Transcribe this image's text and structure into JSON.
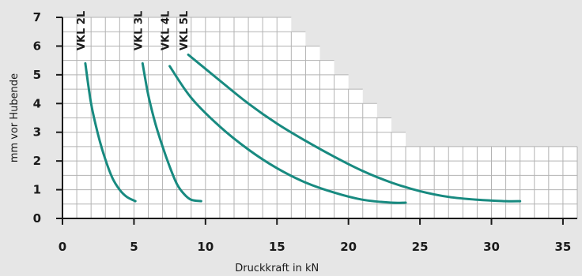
{
  "chart_data": {
    "type": "line",
    "xlabel": "Druckkraft in kN",
    "ylabel": "mm vor Hubende",
    "xlim": [
      0,
      36
    ],
    "ylim": [
      0,
      7
    ],
    "xticks": [
      0,
      5,
      10,
      15,
      20,
      25,
      30,
      35
    ],
    "yticks": [
      0,
      1,
      2,
      3,
      4,
      5,
      6,
      7
    ],
    "grid": true,
    "grid_envelope": {
      "x": [
        0,
        16,
        16,
        17,
        17,
        18,
        18,
        19,
        19,
        20,
        20,
        21,
        21,
        22,
        22,
        23,
        23,
        24,
        24,
        25,
        25,
        36
      ],
      "y": [
        7,
        7,
        6.5,
        6.5,
        6,
        6,
        5.5,
        5.5,
        5,
        5,
        4.5,
        4.5,
        4,
        4,
        3.5,
        3.5,
        3,
        3,
        2.5,
        2.5,
        2.5,
        2.5
      ]
    },
    "series": [
      {
        "name": "VKL 2L",
        "x": [
          1.6,
          2.0,
          2.5,
          3.0,
          3.5,
          4.0,
          4.5,
          5.1
        ],
        "y": [
          5.4,
          4.0,
          2.9,
          2.05,
          1.4,
          1.0,
          0.75,
          0.6
        ]
      },
      {
        "name": "VKL 3L",
        "x": [
          5.6,
          6.0,
          6.5,
          7.0,
          7.5,
          8.0,
          8.5,
          9.0,
          9.7
        ],
        "y": [
          5.4,
          4.3,
          3.3,
          2.5,
          1.8,
          1.2,
          0.85,
          0.65,
          0.6
        ]
      },
      {
        "name": "VKL 4L",
        "x": [
          7.5,
          9.0,
          11.0,
          13.0,
          15.0,
          17.0,
          19.0,
          21.0,
          23.0,
          24.0
        ],
        "y": [
          5.3,
          4.2,
          3.2,
          2.4,
          1.75,
          1.25,
          0.9,
          0.65,
          0.55,
          0.55
        ]
      },
      {
        "name": "VKL 5L",
        "x": [
          8.8,
          11.0,
          13.0,
          15.0,
          17.0,
          19.0,
          21.0,
          23.0,
          25.0,
          27.0,
          29.0,
          31.0,
          32.0
        ],
        "y": [
          5.7,
          4.8,
          4.0,
          3.3,
          2.7,
          2.15,
          1.65,
          1.25,
          0.95,
          0.75,
          0.65,
          0.6,
          0.6
        ]
      }
    ],
    "colors": {
      "background": "#e6e6e6",
      "grid_fill": "#ffffff",
      "grid": "#b3b3b3",
      "line": "#188a80",
      "text": "#1a1a1a"
    }
  }
}
